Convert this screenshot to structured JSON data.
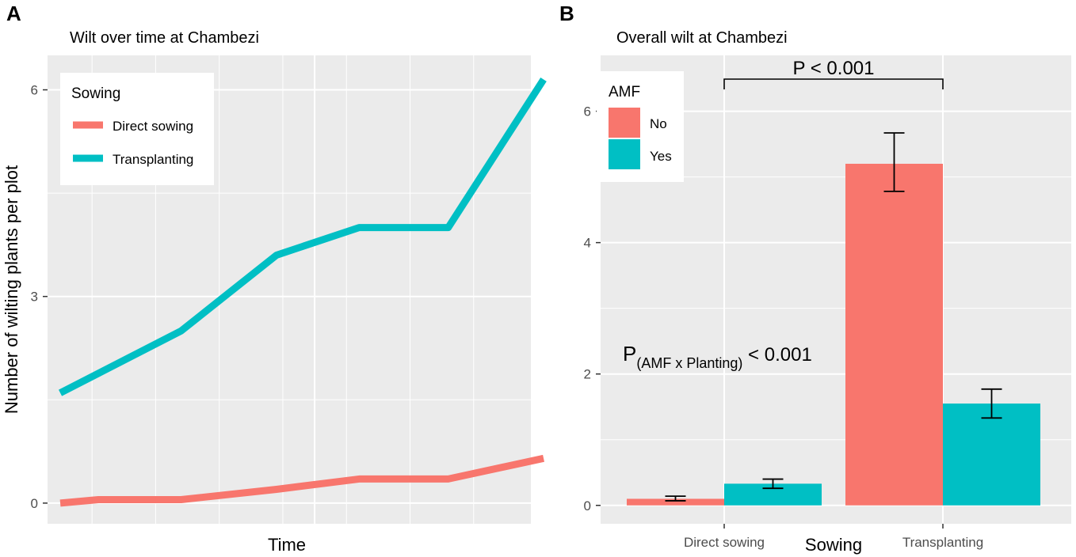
{
  "panels": {
    "a": {
      "label": "A"
    },
    "b": {
      "label": "B"
    }
  },
  "colors": {
    "panel_bg": "#ebebeb",
    "grid": "#ffffff",
    "series_red": "#f8766d",
    "series_teal": "#00bfc4",
    "text": "#000000",
    "tick_text": "#4d4d4d"
  },
  "chart_data": [
    {
      "type": "line",
      "title": "Wilt over time at Chambezi",
      "xlabel": "Time",
      "ylabel": "Number of wilting plants per plot",
      "ylim": [
        -0.3,
        6.5
      ],
      "xlim": [
        0.8,
        8.4
      ],
      "y_ticks": [
        0,
        3,
        6
      ],
      "y_tick_labels": [
        "0",
        "3",
        "6"
      ],
      "legend": {
        "title": "Sowing",
        "position": "top-left",
        "entries": [
          "Direct sowing",
          "Transplanting"
        ]
      },
      "series": [
        {
          "name": "Direct sowing",
          "x": [
            1,
            1.6,
            2.9,
            4.4,
            5.7,
            7.1,
            8.6
          ],
          "values": [
            0,
            0.05,
            0.05,
            0.2,
            0.35,
            0.35,
            0.65
          ]
        },
        {
          "name": "Transplanting",
          "x": [
            1,
            2.9,
            4.4,
            5.7,
            7.1,
            8.6
          ],
          "values": [
            1.6,
            2.5,
            3.6,
            4.0,
            4.0,
            6.15
          ]
        }
      ]
    },
    {
      "type": "bar",
      "title": "Overall wilt at Chambezi",
      "xlabel": "Sowing",
      "ylabel": "",
      "categories": [
        "Direct sowing",
        "Transplanting"
      ],
      "ylim": [
        -0.28,
        6.85
      ],
      "y_ticks": [
        0,
        2,
        4,
        6
      ],
      "y_tick_labels": [
        "0",
        "2",
        "4",
        "6"
      ],
      "legend": {
        "title": "AMF",
        "position": "top-left",
        "entries": [
          "No",
          "Yes"
        ]
      },
      "series": [
        {
          "name": "No",
          "values": [
            0.1,
            5.2
          ],
          "error_low": [
            0.07,
            4.78
          ],
          "error_high": [
            0.14,
            5.67
          ]
        },
        {
          "name": "Yes",
          "values": [
            0.33,
            1.55
          ],
          "error_low": [
            0.26,
            1.33
          ],
          "error_high": [
            0.4,
            1.77
          ]
        }
      ],
      "annotations": {
        "bracket_label": "P < 0.001",
        "interaction_p": "P",
        "interaction_sub": "(AMF x Planting)",
        "interaction_rest": " < 0.001"
      }
    }
  ]
}
